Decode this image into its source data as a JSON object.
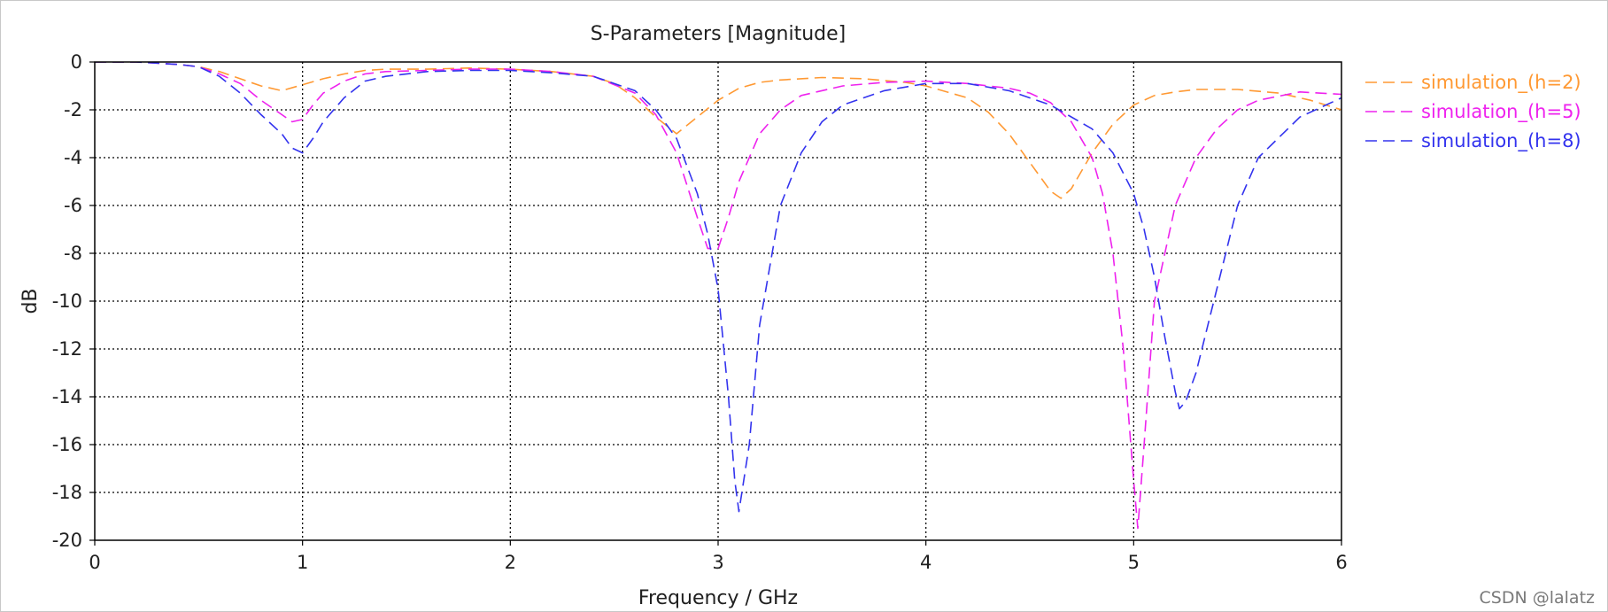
{
  "chart_data": {
    "type": "line",
    "title": "S-Parameters [Magnitude]",
    "xlabel": "Frequency / GHz",
    "ylabel": "dB",
    "xlim": [
      0,
      6
    ],
    "ylim": [
      -20,
      0
    ],
    "xticks": [
      0,
      1,
      2,
      3,
      4,
      5,
      6
    ],
    "yticks": [
      0,
      -2,
      -4,
      -6,
      -8,
      -10,
      -12,
      -14,
      -16,
      -18,
      -20
    ],
    "grid": true,
    "legend_position": "right",
    "series": [
      {
        "name": "simulation_(h=2)",
        "color": "#ff9933",
        "x": [
          0,
          0.2,
          0.4,
          0.5,
          0.6,
          0.7,
          0.8,
          0.9,
          1.0,
          1.1,
          1.2,
          1.3,
          1.4,
          1.6,
          1.8,
          2.0,
          2.2,
          2.4,
          2.5,
          2.6,
          2.7,
          2.8,
          2.9,
          3.0,
          3.1,
          3.2,
          3.3,
          3.5,
          3.7,
          3.9,
          4.0,
          4.2,
          4.3,
          4.4,
          4.5,
          4.6,
          4.65,
          4.7,
          4.8,
          4.9,
          5.0,
          5.1,
          5.2,
          5.3,
          5.5,
          5.7,
          5.85,
          6.0
        ],
        "y": [
          0,
          0,
          -0.1,
          -0.2,
          -0.4,
          -0.7,
          -1.0,
          -1.2,
          -0.95,
          -0.7,
          -0.5,
          -0.35,
          -0.3,
          -0.3,
          -0.25,
          -0.3,
          -0.4,
          -0.6,
          -0.9,
          -1.5,
          -2.3,
          -3.0,
          -2.3,
          -1.6,
          -1.1,
          -0.85,
          -0.75,
          -0.65,
          -0.7,
          -0.85,
          -1.0,
          -1.5,
          -2.1,
          -3.0,
          -4.2,
          -5.4,
          -5.7,
          -5.3,
          -3.8,
          -2.6,
          -1.8,
          -1.4,
          -1.25,
          -1.15,
          -1.15,
          -1.3,
          -1.6,
          -2.0
        ]
      },
      {
        "name": "simulation_(h=5)",
        "color": "#ee22ee",
        "x": [
          0,
          0.2,
          0.4,
          0.5,
          0.6,
          0.7,
          0.8,
          0.9,
          0.95,
          1.0,
          1.05,
          1.1,
          1.2,
          1.3,
          1.4,
          1.6,
          1.8,
          2.0,
          2.2,
          2.4,
          2.6,
          2.7,
          2.8,
          2.9,
          2.95,
          3.0,
          3.05,
          3.1,
          3.2,
          3.3,
          3.4,
          3.6,
          3.8,
          4.0,
          4.2,
          4.4,
          4.5,
          4.6,
          4.7,
          4.8,
          4.85,
          4.9,
          4.95,
          5.0,
          5.02,
          5.05,
          5.1,
          5.2,
          5.3,
          5.4,
          5.5,
          5.6,
          5.8,
          6.0
        ],
        "y": [
          0,
          0,
          -0.1,
          -0.2,
          -0.5,
          -0.9,
          -1.6,
          -2.2,
          -2.5,
          -2.4,
          -1.8,
          -1.3,
          -0.8,
          -0.5,
          -0.4,
          -0.35,
          -0.3,
          -0.3,
          -0.4,
          -0.6,
          -1.3,
          -2.2,
          -3.8,
          -6.5,
          -7.8,
          -7.8,
          -6.5,
          -5.0,
          -3.0,
          -2.0,
          -1.4,
          -1.0,
          -0.85,
          -0.8,
          -0.9,
          -1.1,
          -1.3,
          -1.7,
          -2.5,
          -4.0,
          -5.5,
          -8.0,
          -12.0,
          -17.5,
          -19.5,
          -16.0,
          -10.0,
          -6.0,
          -4.0,
          -2.8,
          -2.0,
          -1.6,
          -1.25,
          -1.35
        ]
      },
      {
        "name": "simulation_(h=8)",
        "color": "#3333ee",
        "x": [
          0,
          0.2,
          0.4,
          0.5,
          0.6,
          0.7,
          0.8,
          0.9,
          0.95,
          1.0,
          1.05,
          1.1,
          1.2,
          1.3,
          1.4,
          1.6,
          1.8,
          2.0,
          2.2,
          2.4,
          2.6,
          2.7,
          2.8,
          2.9,
          2.95,
          3.0,
          3.05,
          3.08,
          3.1,
          3.15,
          3.2,
          3.3,
          3.4,
          3.5,
          3.6,
          3.8,
          4.0,
          4.2,
          4.4,
          4.6,
          4.8,
          4.9,
          5.0,
          5.05,
          5.1,
          5.15,
          5.2,
          5.22,
          5.25,
          5.3,
          5.4,
          5.5,
          5.6,
          5.8,
          6.0
        ],
        "y": [
          0,
          0,
          -0.1,
          -0.2,
          -0.6,
          -1.3,
          -2.2,
          -3.0,
          -3.6,
          -3.8,
          -3.2,
          -2.5,
          -1.5,
          -0.8,
          -0.6,
          -0.4,
          -0.35,
          -0.35,
          -0.45,
          -0.6,
          -1.2,
          -2.0,
          -3.2,
          -5.5,
          -7.2,
          -9.5,
          -14.0,
          -17.5,
          -18.8,
          -16.0,
          -11.0,
          -6.0,
          -3.8,
          -2.5,
          -1.8,
          -1.2,
          -0.9,
          -0.9,
          -1.2,
          -1.8,
          -2.8,
          -3.8,
          -5.5,
          -7.0,
          -9.0,
          -11.5,
          -13.8,
          -14.5,
          -14.2,
          -13.0,
          -9.5,
          -6.0,
          -4.0,
          -2.3,
          -1.5
        ]
      }
    ]
  },
  "watermark": "CSDN @lalatz"
}
